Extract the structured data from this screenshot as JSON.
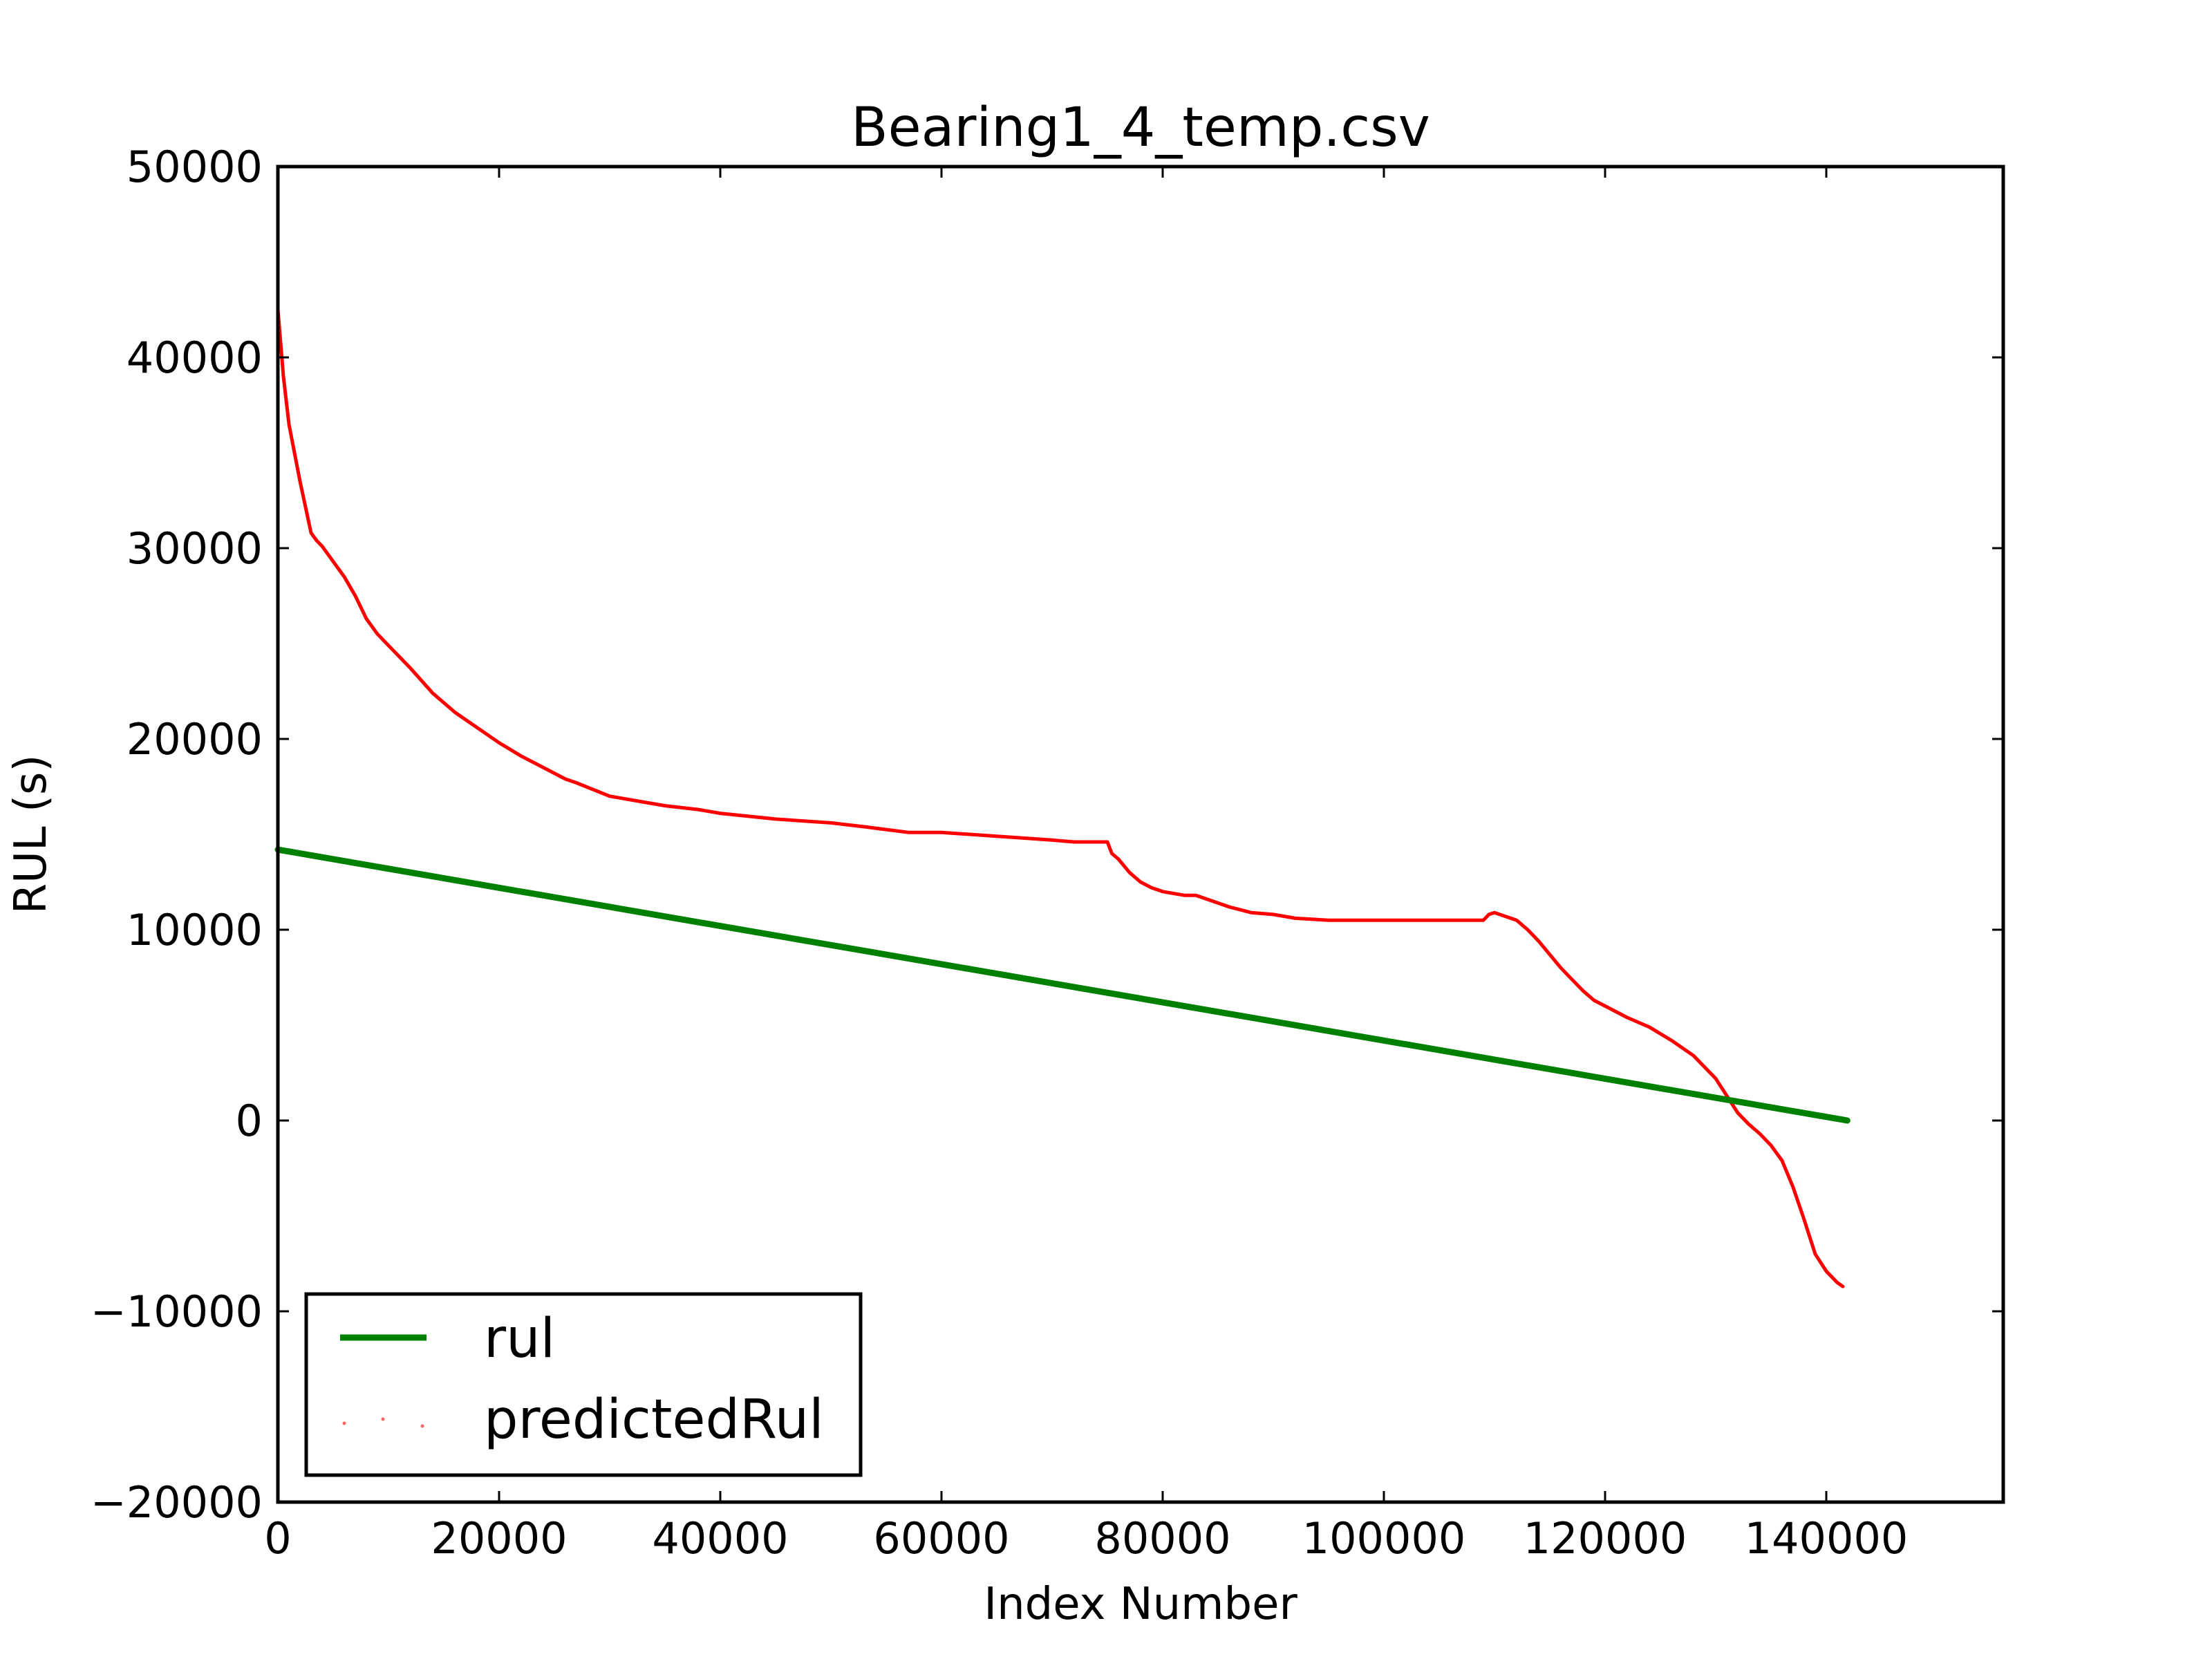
{
  "chart_data": {
    "type": "line",
    "title": "Bearing1_4_temp.csv",
    "xlabel": "Index Number",
    "ylabel": "RUL (s)",
    "xlim": [
      0,
      156000
    ],
    "ylim": [
      -20000,
      50000
    ],
    "xticks": [
      0,
      20000,
      40000,
      60000,
      80000,
      100000,
      120000,
      140000
    ],
    "yticks": [
      -20000,
      -10000,
      0,
      10000,
      20000,
      30000,
      40000,
      50000
    ],
    "xtick_labels": [
      "0",
      "20000",
      "40000",
      "60000",
      "80000",
      "100000",
      "120000",
      "140000"
    ],
    "ytick_labels": [
      "−20000",
      "−10000",
      "0",
      "10000",
      "20000",
      "30000",
      "40000",
      "50000"
    ],
    "grid": false,
    "legend": {
      "position": "lower-left",
      "entries": [
        "rul",
        "predictedRul"
      ]
    },
    "series": [
      {
        "name": "rul",
        "color": "#008000",
        "style": "solid",
        "x": [
          0,
          141900
        ],
        "y": [
          14200,
          0
        ]
      },
      {
        "name": "predictedRul",
        "color": "#ff0000",
        "style": "dotted-markers",
        "x": [
          0,
          500,
          1000,
          2000,
          3000,
          3500,
          4000,
          5000,
          6000,
          7000,
          8000,
          9000,
          10000,
          12000,
          14000,
          16000,
          18000,
          20000,
          22000,
          24000,
          26000,
          27000,
          30000,
          33000,
          35000,
          38000,
          40000,
          45000,
          50000,
          53000,
          57000,
          60000,
          65000,
          70000,
          72000,
          75000,
          75400,
          76000,
          77000,
          78000,
          79000,
          80000,
          82000,
          83000,
          84000,
          86000,
          88000,
          90000,
          92000,
          95000,
          98000,
          100000,
          103000,
          106000,
          109000,
          109500,
          110000,
          111000,
          112000,
          113000,
          114000,
          116000,
          117000,
          118000,
          119000,
          120000,
          122000,
          124000,
          126000,
          128000,
          130000,
          131000,
          132000,
          133000,
          134000,
          135000,
          136000,
          137000,
          138000,
          139000,
          140000,
          141000,
          141500
        ],
        "y": [
          42500,
          39000,
          36500,
          33500,
          30800,
          30400,
          30100,
          29300,
          28500,
          27500,
          26300,
          25500,
          24900,
          23700,
          22400,
          21400,
          20600,
          19800,
          19100,
          18500,
          17900,
          17700,
          17000,
          16700,
          16500,
          16300,
          16100,
          15800,
          15600,
          15400,
          15100,
          15100,
          14900,
          14700,
          14600,
          14600,
          14000,
          13700,
          13000,
          12500,
          12200,
          12000,
          11800,
          11800,
          11600,
          11200,
          10900,
          10800,
          10600,
          10500,
          10500,
          10500,
          10500,
          10500,
          10500,
          10800,
          10900,
          10700,
          10500,
          10000,
          9400,
          8000,
          7400,
          6800,
          6300,
          6000,
          5400,
          4900,
          4200,
          3400,
          2200,
          1300,
          400,
          -200,
          -700,
          -1300,
          -2100,
          -3500,
          -5200,
          -7000,
          -7900,
          -8500,
          -8700
        ]
      }
    ]
  }
}
